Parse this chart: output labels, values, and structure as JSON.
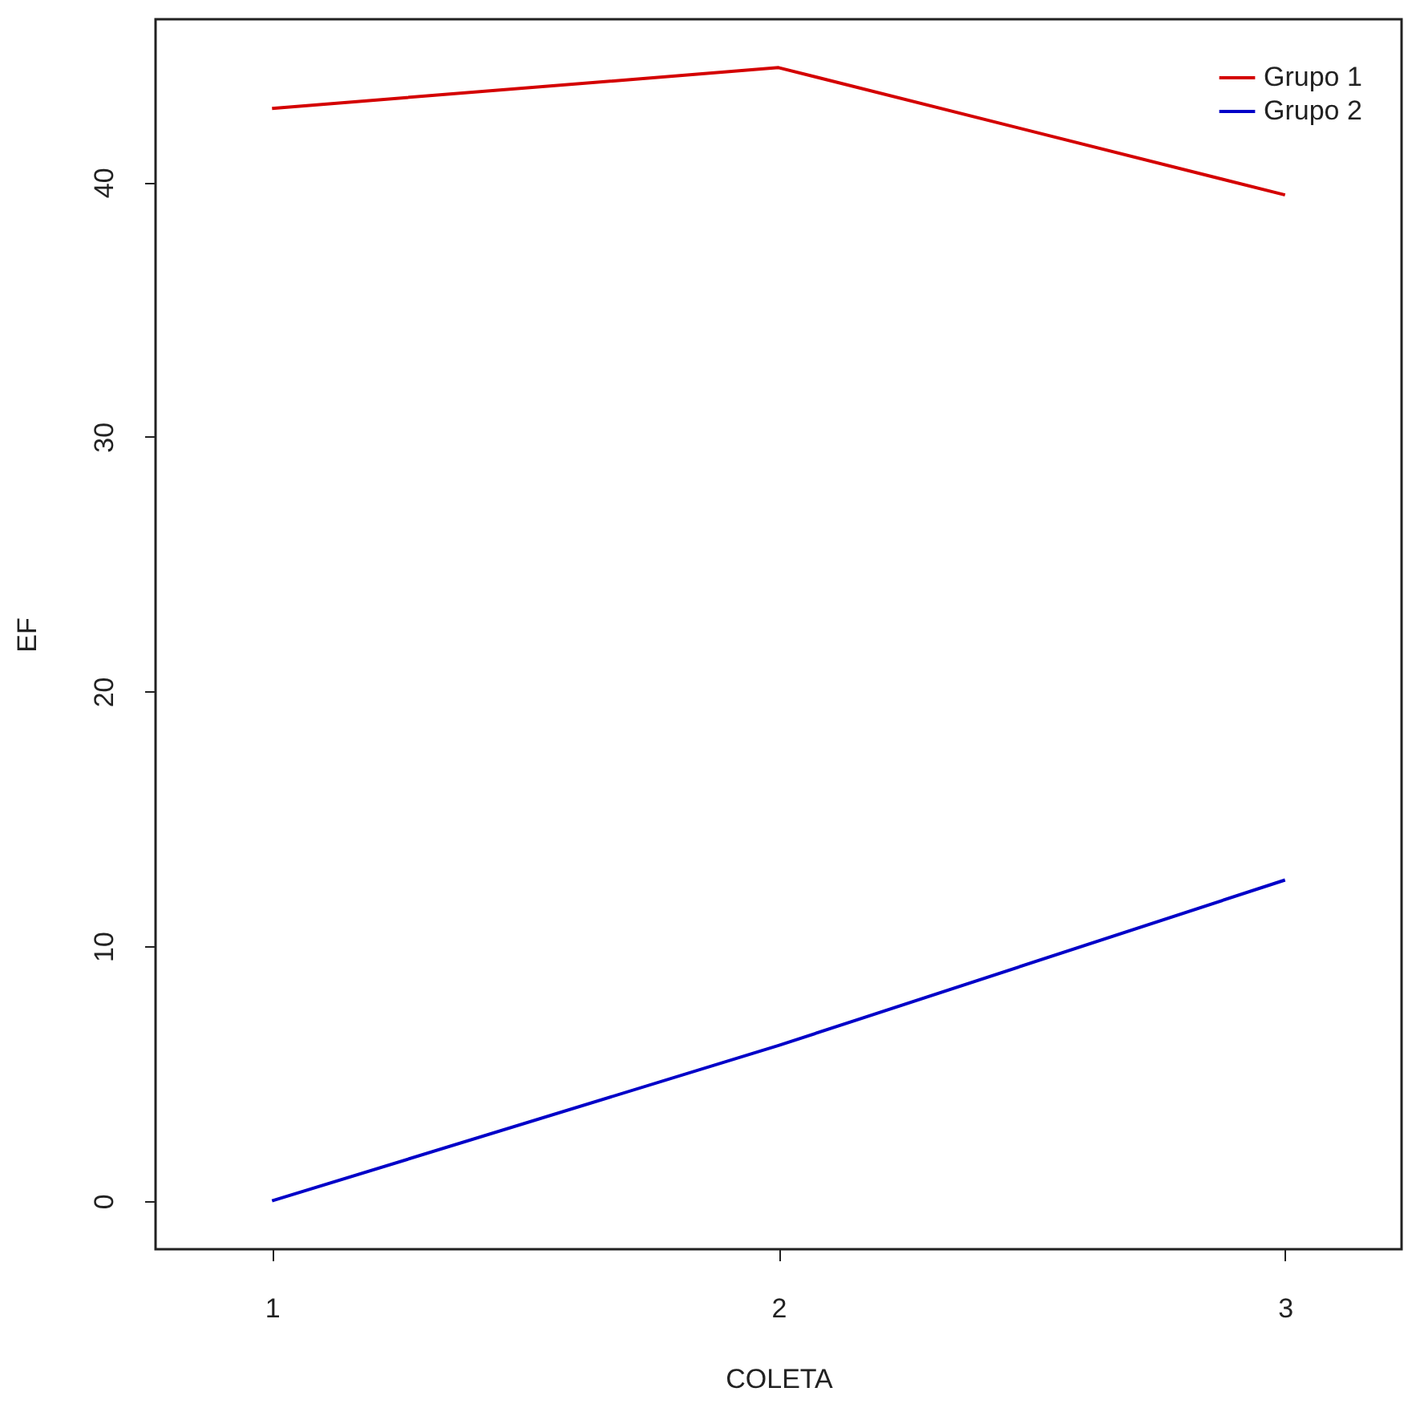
{
  "chart_data": {
    "type": "line",
    "xlabel": "COLETA",
    "ylabel": "EF",
    "x": [
      1,
      2,
      3
    ],
    "series": [
      {
        "name": "Grupo 1",
        "color": "#d40000",
        "values": [
          42.9,
          44.5,
          39.5
        ]
      },
      {
        "name": "Grupo 2",
        "color": "#0000c8",
        "values": [
          0,
          6.1,
          12.6
        ]
      }
    ],
    "xlim": [
      0.77,
      3.23
    ],
    "xticks": [
      1,
      2,
      3
    ],
    "ylim": [
      -1.9,
      46.4
    ],
    "yticks": [
      0,
      10,
      20,
      30,
      40
    ],
    "grid": false,
    "legend": "top right",
    "marker": "none",
    "line_style": "solid"
  }
}
